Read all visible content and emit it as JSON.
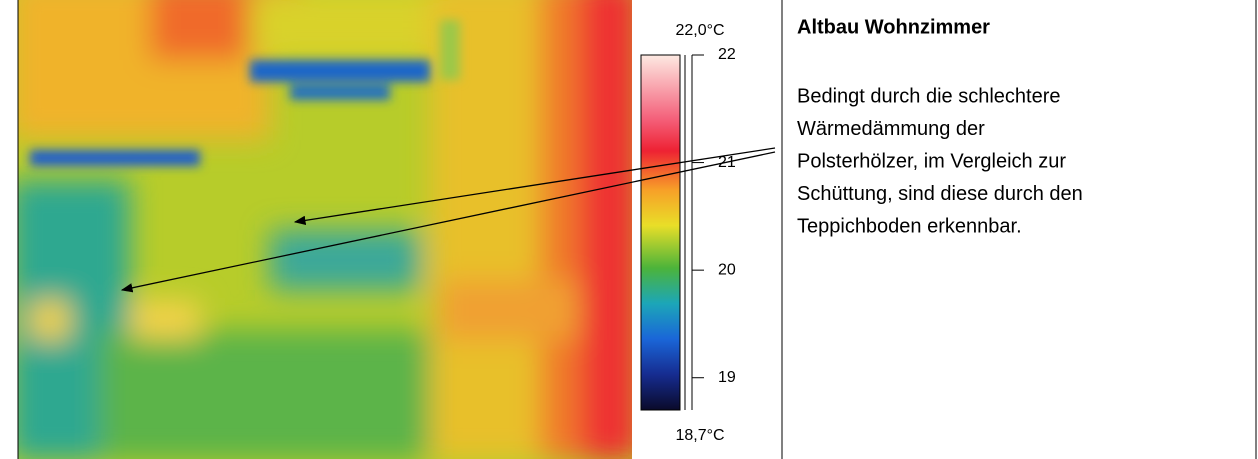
{
  "title": "Altbau Wohnzimmer",
  "body_lines": [
    "Bedingt durch die schlechtere",
    "Wärmedämmung der",
    "Polsterhölzer, im Vergleich zur",
    "Schüttung, sind diese durch den",
    "Teppichboden erkennbar."
  ],
  "scale": {
    "max_label": {
      "value": 22.0,
      "label": "22,0°C"
    },
    "min_label": {
      "value": 18.7,
      "label": "18,7°C"
    },
    "ticks": [
      22,
      21,
      20,
      19
    ]
  }
}
